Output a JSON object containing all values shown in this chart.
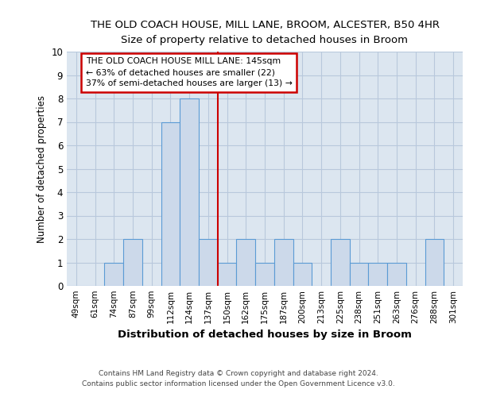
{
  "title": "THE OLD COACH HOUSE, MILL LANE, BROOM, ALCESTER, B50 4HR",
  "subtitle": "Size of property relative to detached houses in Broom",
  "xlabel": "Distribution of detached houses by size in Broom",
  "ylabel": "Number of detached properties",
  "bin_labels": [
    "49sqm",
    "61sqm",
    "74sqm",
    "87sqm",
    "99sqm",
    "112sqm",
    "124sqm",
    "137sqm",
    "150sqm",
    "162sqm",
    "175sqm",
    "187sqm",
    "200sqm",
    "213sqm",
    "225sqm",
    "238sqm",
    "251sqm",
    "263sqm",
    "276sqm",
    "288sqm",
    "301sqm"
  ],
  "bar_heights": [
    0,
    0,
    1,
    2,
    0,
    7,
    8,
    2,
    1,
    2,
    1,
    2,
    1,
    0,
    2,
    1,
    1,
    1,
    0,
    2,
    0
  ],
  "bar_color": "#ccd9ea",
  "bar_edge_color": "#5b9bd5",
  "grid_color": "#b8c8dc",
  "background_color": "#dce6f0",
  "plot_bg_color": "#dce6f0",
  "red_line_index": 7,
  "annotation_text": "THE OLD COACH HOUSE MILL LANE: 145sqm\n← 63% of detached houses are smaller (22)\n37% of semi-detached houses are larger (13) →",
  "annotation_box_facecolor": "#ffffff",
  "annotation_box_edgecolor": "#cc0000",
  "ylim_max": 10,
  "yticks": [
    0,
    1,
    2,
    3,
    4,
    5,
    6,
    7,
    8,
    9,
    10
  ],
  "footer_line1": "Contains HM Land Registry data © Crown copyright and database right 2024.",
  "footer_line2": "Contains public sector information licensed under the Open Government Licence v3.0.",
  "footer_bg": "#ffffff"
}
